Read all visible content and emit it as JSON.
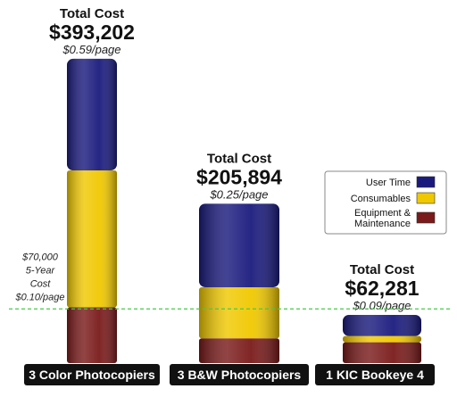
{
  "colors": {
    "user_time": "#1a1a7e",
    "consumables": "#f0c800",
    "equipment": "#7a1a1a",
    "reference_line": "#44cc44",
    "label_bg": "#111111"
  },
  "reference": {
    "value": 70000,
    "lines": [
      "$70,000",
      "5-Year",
      "Cost",
      "$0.10/page"
    ]
  },
  "legend": {
    "items": [
      {
        "label_lines": [
          "User Time"
        ],
        "color_key": "user_time"
      },
      {
        "label_lines": [
          "Consumables"
        ],
        "color_key": "consumables"
      },
      {
        "label_lines": [
          "Equipment &",
          "Maintenance"
        ],
        "color_key": "equipment"
      }
    ]
  },
  "chart_data": {
    "type": "bar",
    "stacked": true,
    "ylim": [
      0,
      400000
    ],
    "grid": false,
    "legend_position": "right",
    "categories": [
      "3 Color Photocopiers",
      "3 B&W Photocopiers",
      "1 KIC Bookeye 4"
    ],
    "totals": [
      {
        "heading": "Total Cost",
        "amount": "$393,202",
        "per_page": "$0.59/page"
      },
      {
        "heading": "Total Cost",
        "amount": "$205,894",
        "per_page": "$0.25/page"
      },
      {
        "heading": "Total Cost",
        "amount": "$62,281",
        "per_page": "$0.09/page"
      }
    ],
    "series": [
      {
        "name": "Equipment & Maintenance",
        "color_key": "equipment",
        "values": [
          72000,
          32000,
          27000
        ]
      },
      {
        "name": "Consumables",
        "color_key": "consumables",
        "values": [
          177000,
          66000,
          8000
        ]
      },
      {
        "name": "User Time",
        "color_key": "user_time",
        "values": [
          144202,
          107894,
          27281
        ]
      }
    ]
  }
}
